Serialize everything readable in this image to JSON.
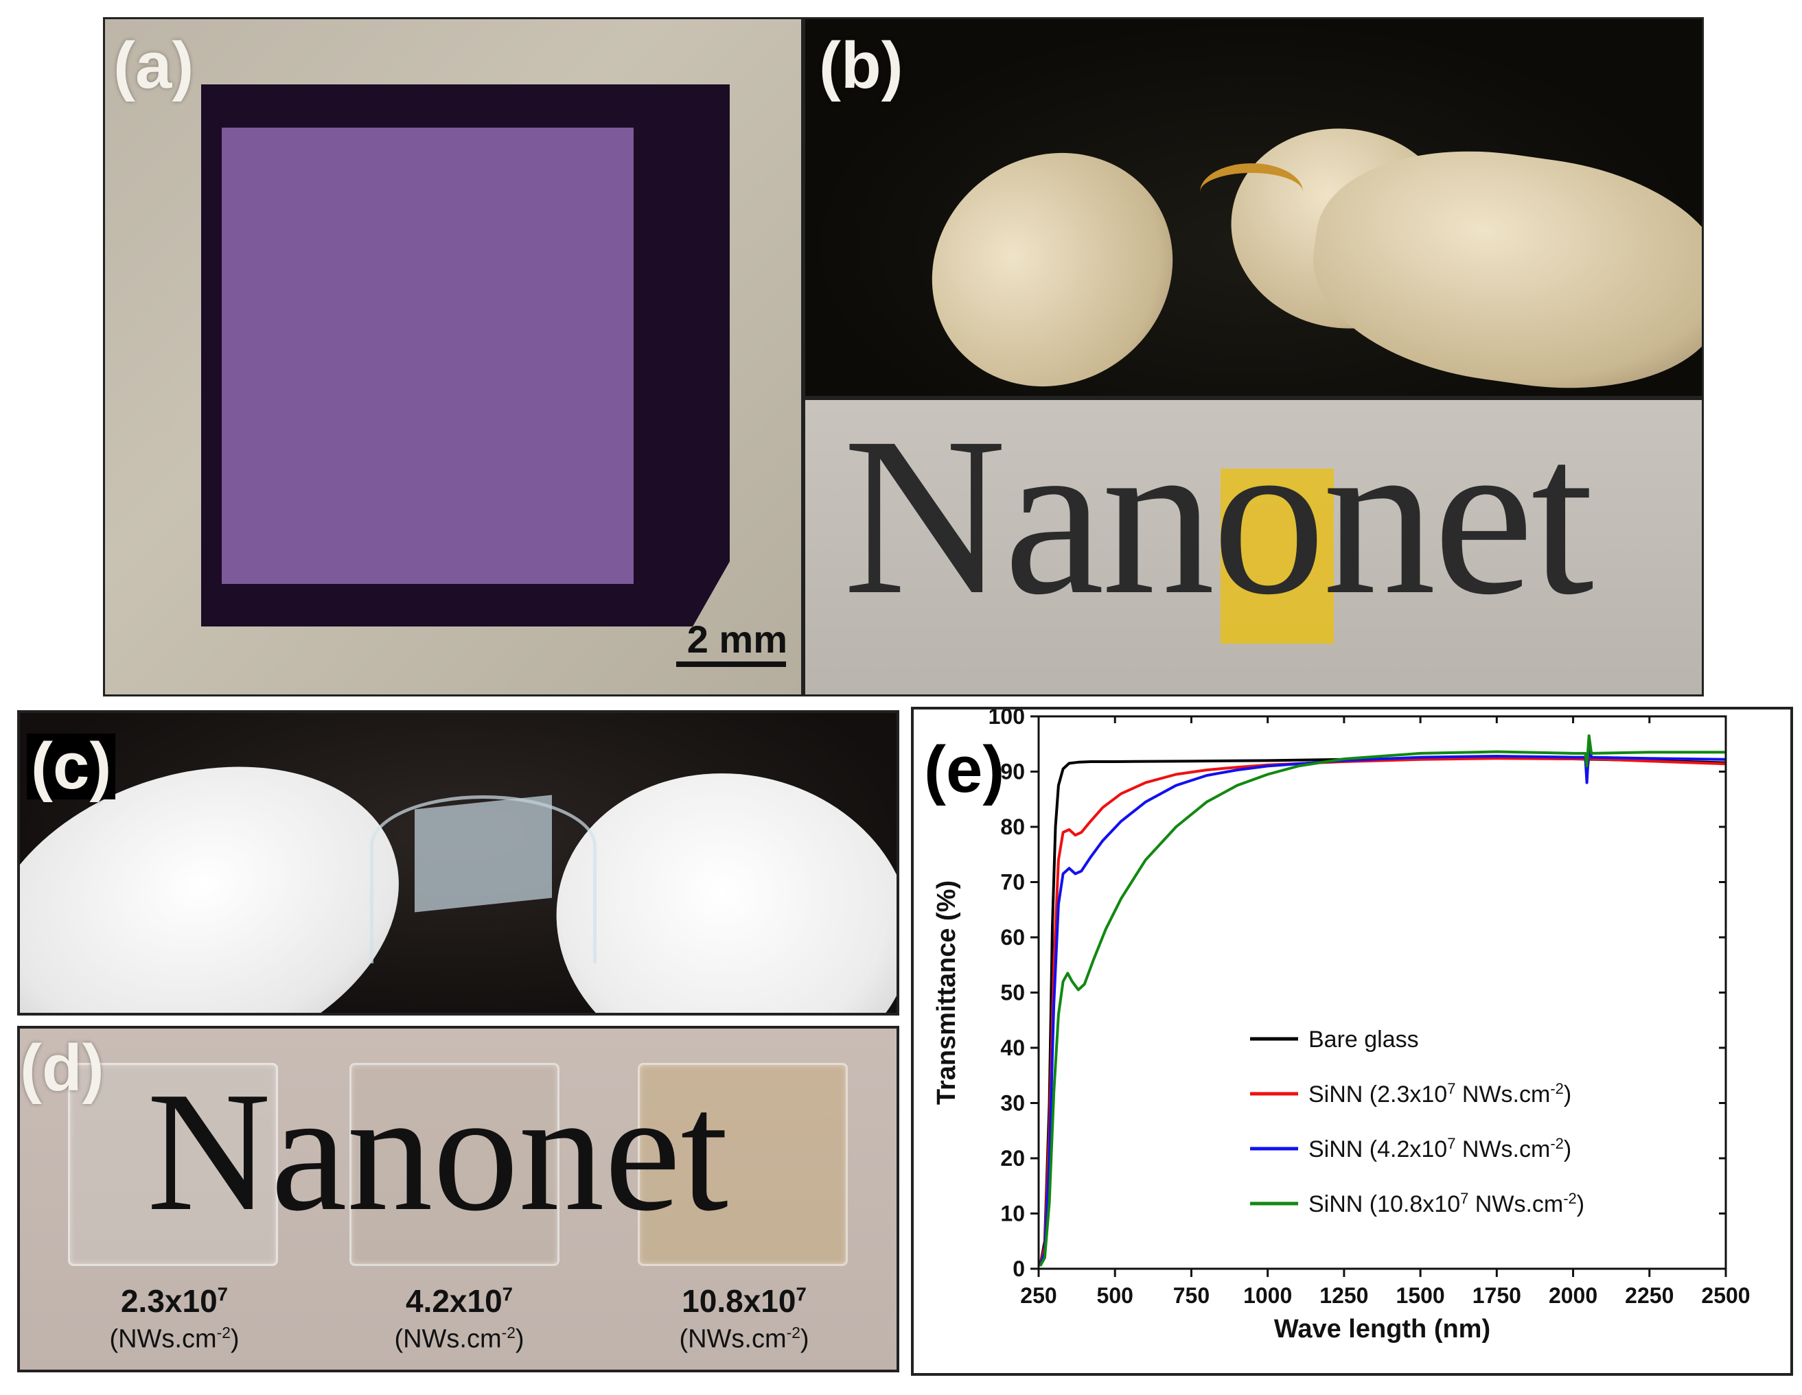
{
  "panels": {
    "a": {
      "label": "(a)",
      "scale_bar": "2 mm"
    },
    "b": {
      "label": "(b)",
      "word": "Nanonet"
    },
    "c": {
      "label": "(c)"
    },
    "d": {
      "label": "(d)",
      "word": "Nanonet",
      "samples": [
        {
          "value": "2.3x10",
          "exp": "7",
          "unit": "(NWs.cm",
          "unit_exp": "-2",
          "unit_end": ")"
        },
        {
          "value": "4.2x10",
          "exp": "7",
          "unit": "(NWs.cm",
          "unit_exp": "-2",
          "unit_end": ")"
        },
        {
          "value": "10.8x10",
          "exp": "7",
          "unit": "(NWs.cm",
          "unit_exp": "-2",
          "unit_end": ")"
        }
      ]
    },
    "e": {
      "label": "(e)"
    }
  },
  "colors": {
    "bare": "#000000",
    "s23": "#ee1111",
    "s42": "#1111ee",
    "s108": "#118811"
  },
  "chart_data": {
    "type": "line",
    "title": "",
    "xlabel": "Wave length (nm)",
    "ylabel": "Transmittance (%)",
    "xlim": [
      250,
      2500
    ],
    "ylim": [
      0,
      100
    ],
    "xticks": [
      250,
      500,
      750,
      1000,
      1250,
      1500,
      1750,
      2000,
      2250,
      2500
    ],
    "yticks": [
      0,
      10,
      20,
      30,
      40,
      50,
      60,
      70,
      80,
      90,
      100
    ],
    "legend_position": "lower-right",
    "series": [
      {
        "name": "Bare glass",
        "legend_main": "Bare glass",
        "legend_exp1": "",
        "legend_mid": "",
        "legend_exp2": "",
        "legend_end": "",
        "color": "#000000",
        "x": [
          255,
          270,
          285,
          295,
          305,
          315,
          330,
          350,
          380,
          420,
          500,
          750,
          1000,
          1250,
          1500,
          1750,
          2000,
          2250,
          2500
        ],
        "y": [
          0.5,
          5,
          30,
          62,
          80,
          87.5,
          90.5,
          91.5,
          91.7,
          91.8,
          91.8,
          91.9,
          92.0,
          92.2,
          92.4,
          92.5,
          92.3,
          92.0,
          91.6
        ]
      },
      {
        "name": "SiNN (2.3x10^7 NWs.cm^-2)",
        "legend_main": "SiNN (2.3x10",
        "legend_exp1": "7",
        "legend_mid": " NWs.cm",
        "legend_exp2": "-2",
        "legend_end": ")",
        "color": "#ee1111",
        "x": [
          255,
          270,
          285,
          300,
          315,
          330,
          350,
          370,
          390,
          420,
          460,
          520,
          600,
          700,
          800,
          900,
          1000,
          1250,
          1500,
          1750,
          2000,
          2040,
          2045,
          2055,
          2060,
          2250,
          2500
        ],
        "y": [
          0.5,
          4,
          25,
          55,
          74,
          79,
          79.5,
          78.5,
          79,
          81,
          83.5,
          86,
          88,
          89.5,
          90.3,
          90.8,
          91.2,
          91.8,
          92.2,
          92.4,
          92.3,
          92.3,
          89.5,
          94,
          92.3,
          91.9,
          91.4
        ]
      },
      {
        "name": "SiNN (4.2x10^7 NWs.cm^-2)",
        "legend_main": "SiNN (4.2x10",
        "legend_exp1": "7",
        "legend_mid": " NWs.cm",
        "legend_exp2": "-2",
        "legend_end": ")",
        "color": "#1111ee",
        "x": [
          255,
          270,
          285,
          300,
          315,
          330,
          350,
          370,
          390,
          420,
          460,
          520,
          600,
          700,
          800,
          900,
          1000,
          1250,
          1500,
          1750,
          2000,
          2040,
          2045,
          2052,
          2060,
          2250,
          2500
        ],
        "y": [
          0.5,
          3,
          20,
          48,
          66,
          71.5,
          72.5,
          71.5,
          72,
          74.5,
          77.5,
          81,
          84.5,
          87.5,
          89.3,
          90.3,
          91,
          92,
          92.6,
          92.8,
          92.6,
          92.6,
          88,
          95,
          92.6,
          92.4,
          92.2
        ]
      },
      {
        "name": "SiNN (10.8x10^7 NWs.cm^-2)",
        "legend_main": "SiNN (10.8x10",
        "legend_exp1": "7",
        "legend_mid": " NWs.cm",
        "legend_exp2": "-2",
        "legend_end": ")",
        "color": "#118811",
        "x": [
          255,
          270,
          285,
          300,
          315,
          330,
          345,
          360,
          380,
          400,
          430,
          470,
          520,
          600,
          700,
          800,
          900,
          1000,
          1100,
          1250,
          1500,
          1750,
          2000,
          2040,
          2045,
          2052,
          2060,
          2250,
          2500
        ],
        "y": [
          0.5,
          2,
          12,
          32,
          46,
          52,
          53.5,
          52,
          50.5,
          51.5,
          56,
          61.5,
          67,
          74,
          80,
          84.5,
          87.5,
          89.5,
          91,
          92.3,
          93.3,
          93.6,
          93.3,
          93.3,
          91,
          96.5,
          93.3,
          93.5,
          93.5
        ]
      }
    ]
  }
}
